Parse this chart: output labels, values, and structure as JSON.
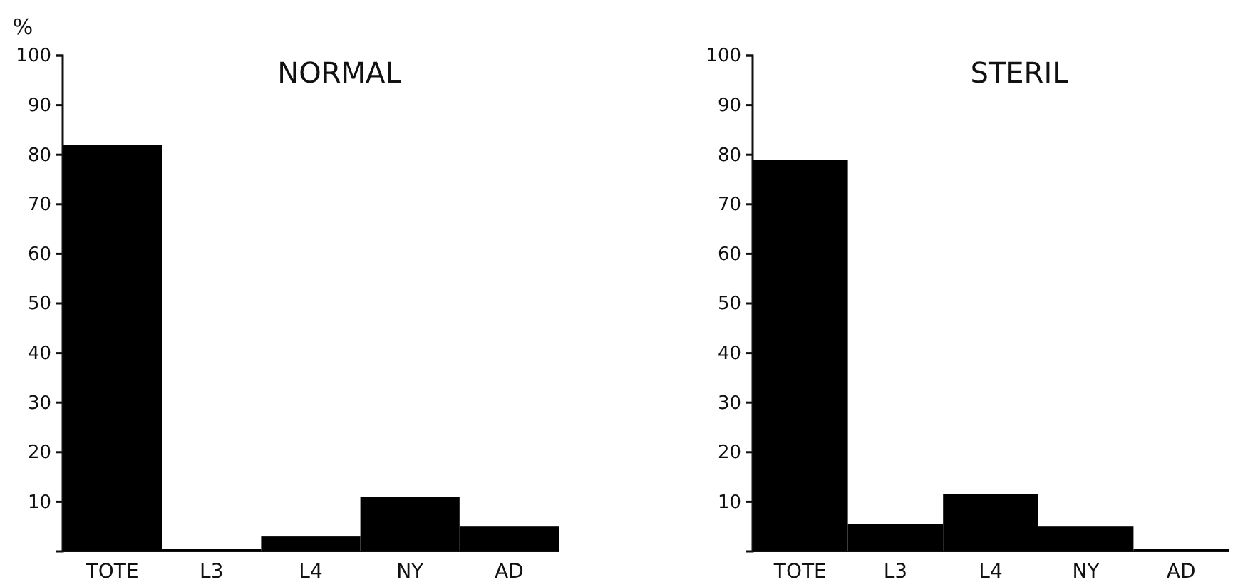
{
  "chart_data": [
    {
      "type": "bar",
      "title": "NORMAL",
      "ylabel": "%",
      "categories": [
        "TOTE",
        "L3",
        "L4",
        "NY",
        "AD"
      ],
      "values": [
        82,
        0.5,
        3,
        11,
        5
      ],
      "color": "#000000",
      "ylim": [
        0,
        100
      ],
      "yticks": [
        10,
        20,
        30,
        40,
        50,
        60,
        70,
        80,
        90,
        100
      ],
      "grid": false
    },
    {
      "type": "bar",
      "title": "STERIL",
      "categories": [
        "TOTE",
        "L3",
        "L4",
        "NY",
        "AD"
      ],
      "values": [
        79,
        5.5,
        11.5,
        5,
        0.5
      ],
      "color": "#000000",
      "ylim": [
        0,
        100
      ],
      "yticks": [
        10,
        20,
        30,
        40,
        50,
        60,
        70,
        80,
        90,
        100
      ],
      "grid": false
    }
  ]
}
